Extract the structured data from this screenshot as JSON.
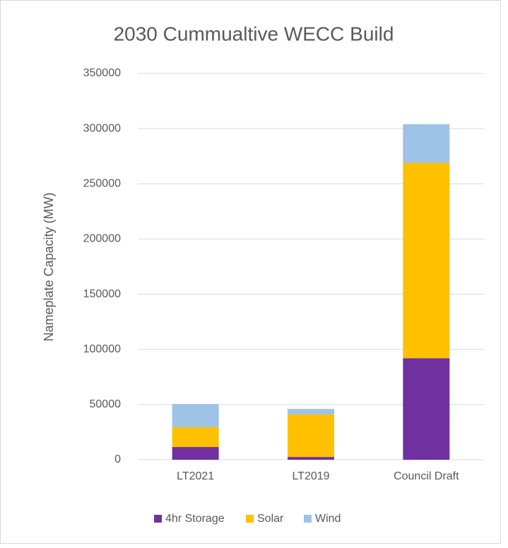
{
  "chart_data": {
    "type": "stacked-bar",
    "title": "2030 Cummualtive WECC Build",
    "y_label": "Nameplate Capacity (MW)",
    "categories": [
      "LT2021",
      "LT2019",
      "Council Draft"
    ],
    "series": [
      {
        "name": "4hr Storage",
        "color": "#7030a0",
        "values": [
          11500,
          2500,
          92000
        ]
      },
      {
        "name": "Solar",
        "color": "#ffc000",
        "values": [
          18000,
          38500,
          177000
        ]
      },
      {
        "name": "Wind",
        "color": "#9dc3e6",
        "values": [
          21000,
          5000,
          35000
        ]
      }
    ],
    "ylim": [
      0,
      350000
    ],
    "yticks": [
      0,
      50000,
      100000,
      150000,
      200000,
      250000,
      300000,
      350000
    ],
    "grid": true,
    "legend": "bottom"
  }
}
